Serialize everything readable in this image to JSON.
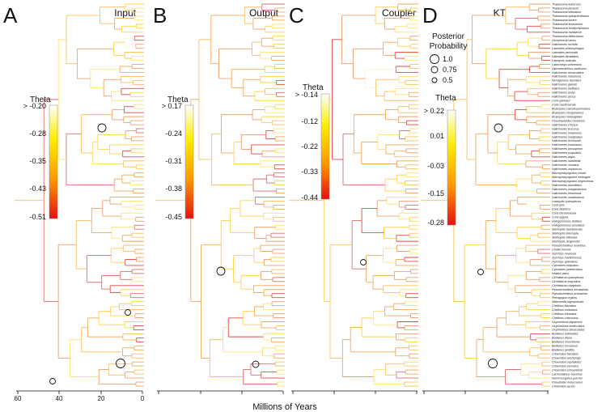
{
  "panels": [
    {
      "letter": "A",
      "title": "Input",
      "legend_title": "Theta",
      "legend_ticks": [
        "> -0.20",
        "-0.28",
        "-0.35",
        "-0.43",
        "-0.51"
      ]
    },
    {
      "letter": "B",
      "title": "Output",
      "legend_title": "Theta",
      "legend_ticks": [
        "> 0.17",
        "-0.24",
        "-0.31",
        "-0.38",
        "-0.45"
      ]
    },
    {
      "letter": "C",
      "title": "Coupler",
      "legend_title": "Theta",
      "legend_ticks": [
        "> -0.14",
        "-0.12",
        "-0.22",
        "-0.33",
        "-0.44"
      ]
    },
    {
      "letter": "D",
      "title": "KT",
      "legend_title": "Theta",
      "legend_ticks": [
        "> 0.22",
        "0.01",
        "-0.03",
        "-0.15",
        "-0.28"
      ]
    }
  ],
  "posterior_legend": {
    "title_line1": "Posterior",
    "title_line2": "Probability",
    "items": [
      "1.0",
      "0.75",
      "0.5"
    ]
  },
  "axis": {
    "ticks": [
      "60",
      "40",
      "20",
      "0"
    ],
    "label": "Millions of Years"
  },
  "colors": {
    "low": "#e81010",
    "mid": "#ff9a00",
    "high": "#ffee00",
    "top": "#ffffff",
    "branch_base": "#f0c070"
  },
  "taxa": [
    "Thalassoma lutescens",
    "Thalassoma jansenii",
    "Thalassoma trilobatum",
    "Thalassoma quinquevittatum",
    "Thalassoma lunare",
    "Thalassoma lucasanum",
    "Thalassoma amblycephalum",
    "Thalassoma hardwicke",
    "Thalassoma bifasciatum",
    "Gomphosus varius",
    "Halichoeres nicholsi",
    "Labroides phthirophagus",
    "Labroides pectoralis",
    "Labroides dimidiatus",
    "Labropsis australis",
    "Labrichthys unilineatus",
    "Diproctacanthus xanthurus",
    "Halichoeres trimaculatus",
    "Halichoeres nebulosus",
    "Hemigymnus fasciatus",
    "Halichoeres garnoti",
    "Halichoeres bivittatus",
    "Halichoeres poeyi",
    "Halichoeres pictus",
    "Coris gaimard",
    "Coris caudimacula",
    "Anampses caeruleopunctatus",
    "Anampses neoguinaicus",
    "Anampses meleagrides",
    "Pseudojuloides cerasinus",
    "Halichoeres chrysus",
    "Halichoeres leucurus",
    "Halichoeres melanurus",
    "Halichoeres marginatus",
    "Halichoeres richmondi",
    "Halichoeres hortulanus",
    "Halichoeres prosopeion",
    "Halichoeres scapularis",
    "Halichoeres argus",
    "Halichoeres hartzfeldii",
    "Halichoeres miniatus",
    "Halichoeres zeylonicus",
    "Macropharyngodon choati",
    "Macropharyngodon meleagris",
    "Macropharyngodon negrosensis",
    "Halichoeres biocellatus",
    "Halichoeres margaritaceus",
    "Halichoeres timorensis",
    "Halichoeres ornatissimus",
    "Leptojulis cyanopleura",
    "Coris julis",
    "Coris atlantica",
    "Coris dorsomacula",
    "Coris aygula",
    "Hologymnosus doliatus",
    "Hologymnosus annulatus",
    "Stethojulis bandanensis",
    "Stethojulis interrupta",
    "Stethojulis trilineata",
    "Stethojulis strigiventer",
    "Pseudocheilinus evanidus",
    "Cheilio inermis",
    "Xyrichtys novacula",
    "Xyrichtys martinicensis",
    "Xyrichtys splendens",
    "Cymolutes torquatus",
    "Cymolutes praetextatus",
    "Iniistius pavo",
    "Cirrhilabrus cyanopleura",
    "Cirrhilabrus exquisitus",
    "Cirrhilabrus rubripinnis",
    "Pseudocheilinus hexataenia",
    "Pseudocheilinus octotaenia",
    "Pteragogus cryptus",
    "Wetmorella nigropinnata",
    "Cheilinus fasciatus",
    "Cheilinus undulatus",
    "Cheilinus trilobatus",
    "Cheilinus chlorourus",
    "Oxycheilinus digramma",
    "Oxycheilinus unifasciatus",
    "Oxycheilinus bimaculatus",
    "Bodianus anthioides",
    "Bodianus diana",
    "Bodianus mesothorax",
    "Bodianus loxozonus",
    "Bodianus perditio",
    "Choerodon fasciatus",
    "Choerodon anchorago",
    "Choerodon cephalotes",
    "Choerodon venustus",
    "Choerodon schoenleinii",
    "Lachnolaimus maximus",
    "Semicossyphus pulcher",
    "Pseudodax moluccanus",
    "Choerodon azurio"
  ]
}
